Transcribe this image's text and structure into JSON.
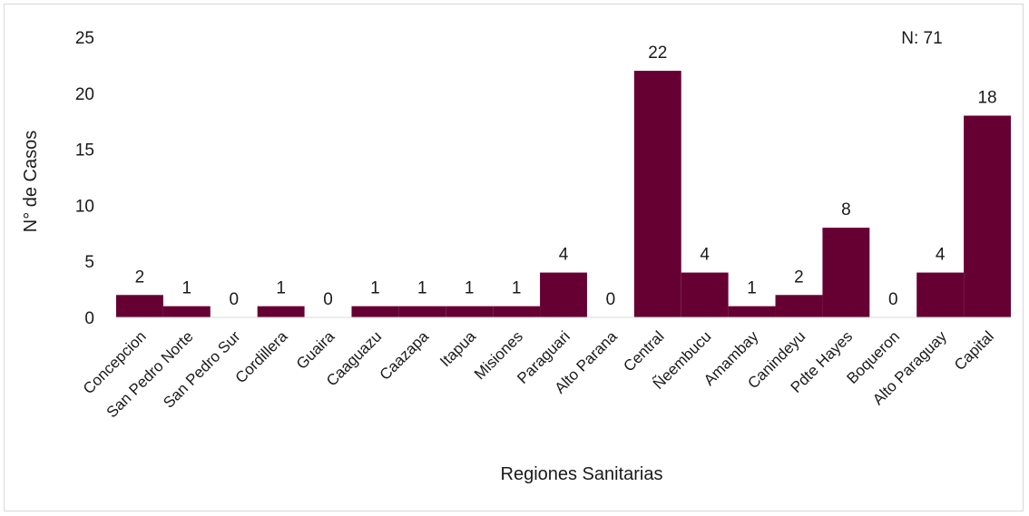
{
  "chart_data": {
    "type": "bar",
    "categories": [
      "Concepcion",
      "San Pedro Norte",
      "San Pedro Sur",
      "Cordillera",
      "Guaira",
      "Caaguazu",
      "Caazapa",
      "Itapua",
      "Misiones",
      "Paraguari",
      "Alto Parana",
      "Central",
      "Ñeembucu",
      "Amambay",
      "Canindeyu",
      "Pdte Hayes",
      "Boqueron",
      "Alto Paraguay",
      "Capital"
    ],
    "values": [
      2,
      1,
      0,
      1,
      0,
      1,
      1,
      1,
      1,
      4,
      0,
      22,
      4,
      1,
      2,
      8,
      0,
      4,
      18
    ],
    "xlabel": "Regiones Sanitarias",
    "ylabel": "N° de Casos",
    "ylim": [
      0,
      25
    ],
    "yticks": [
      0,
      5,
      10,
      15,
      20,
      25
    ],
    "annotation": "N: 71",
    "grid": false,
    "bar_color": "#660033"
  }
}
